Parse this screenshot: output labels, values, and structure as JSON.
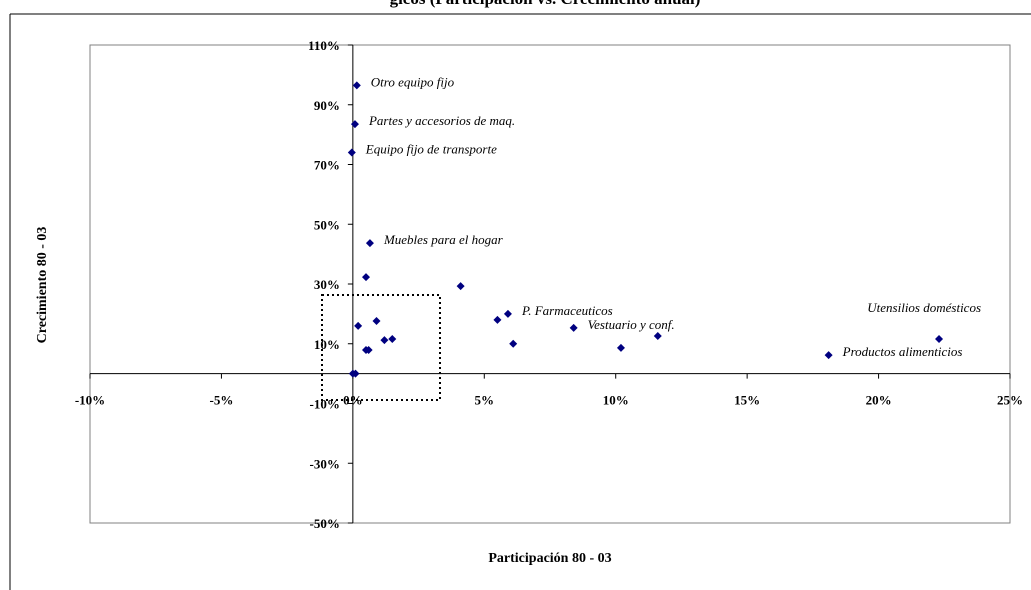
{
  "chart_data": {
    "type": "scatter",
    "title": "gicos (Participación vs. Crecimiento anual)",
    "x_label": "Participación 80 - 03",
    "y_label": "Crecimiento 80 - 03",
    "color": "#000080",
    "xlim": [
      -10,
      25
    ],
    "xticks": [
      {
        "value": -10,
        "label": "-10%"
      },
      {
        "value": -5,
        "label": "-5%"
      },
      {
        "value": 0,
        "label": "0%"
      },
      {
        "value": 5,
        "label": "5%"
      },
      {
        "value": 10,
        "label": "10%"
      },
      {
        "value": 15,
        "label": "15%"
      },
      {
        "value": 20,
        "label": "20%"
      },
      {
        "value": 25,
        "label": "25%"
      }
    ],
    "ylim": [
      -50,
      110
    ],
    "yticks": [
      {
        "value": 110,
        "label": "110%"
      },
      {
        "value": 90,
        "label": "90%"
      },
      {
        "value": 70,
        "label": "70%"
      },
      {
        "value": 50,
        "label": "50%"
      },
      {
        "value": 30,
        "label": "30%"
      },
      {
        "value": 10,
        "label": "10%"
      },
      {
        "value": -10,
        "label": "-10%"
      },
      {
        "value": -30,
        "label": "-30%"
      },
      {
        "value": -50,
        "label": "-50%"
      }
    ],
    "x": [
      0.15,
      0.08,
      -0.04,
      0.65,
      0.5,
      4.1,
      0.2,
      0.9,
      1.2,
      1.5,
      0.5,
      0.6,
      0,
      0.1,
      5.5,
      5.9,
      6.1,
      8.4,
      10.2,
      11.6,
      18.1,
      22.3
    ],
    "values": [
      96.5,
      83.5,
      74,
      43.7,
      32.3,
      29.3,
      16,
      17.6,
      11.2,
      11.6,
      7.9,
      7.9,
      0,
      0,
      18,
      20,
      10,
      15.3,
      8.6,
      12.6,
      6.2,
      11.6
    ],
    "point_labels": [
      "Otro equipo fijo",
      "Partes y accesorios de maq.",
      "Equipo fijo de transporte",
      "Muebles para el hogar",
      null,
      null,
      null,
      null,
      null,
      null,
      null,
      null,
      null,
      null,
      null,
      "P. Farmaceuticos",
      null,
      "Vestuario y conf.",
      null,
      null,
      "Productos alimenticios",
      "Utensilios domésticos"
    ]
  }
}
